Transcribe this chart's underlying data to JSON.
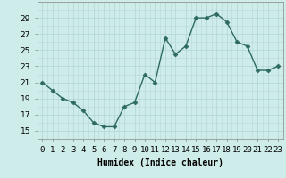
{
  "x": [
    0,
    1,
    2,
    3,
    4,
    5,
    6,
    7,
    8,
    9,
    10,
    11,
    12,
    13,
    14,
    15,
    16,
    17,
    18,
    19,
    20,
    21,
    22,
    23
  ],
  "y": [
    21,
    20,
    19,
    18.5,
    17.5,
    16,
    15.5,
    15.5,
    18,
    18.5,
    22,
    21,
    26.5,
    24.5,
    25.5,
    29,
    29,
    29.5,
    28.5,
    26,
    25.5,
    22.5,
    22.5,
    23
  ],
  "line_color": "#2d6b5e",
  "marker": "D",
  "marker_size": 2.5,
  "line_width": 1.0,
  "bg_color": "#ceecea",
  "grid_major_color": "#b8d8d5",
  "grid_minor_color": "#d4ecea",
  "xlabel": "Humidex (Indice chaleur)",
  "ylim": [
    14,
    31
  ],
  "xlim": [
    -0.5,
    23.5
  ],
  "yticks": [
    15,
    17,
    19,
    21,
    23,
    25,
    27,
    29
  ],
  "xlabel_fontsize": 7,
  "tick_fontsize": 6.5
}
